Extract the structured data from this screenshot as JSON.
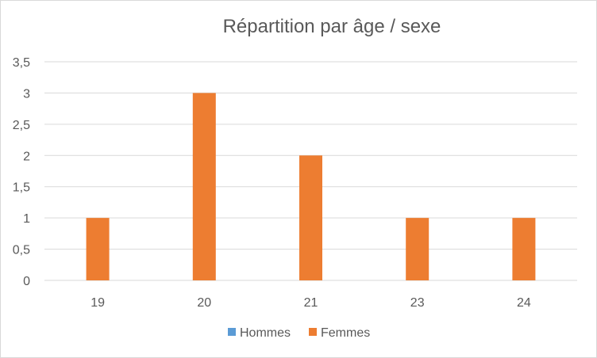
{
  "chart_data": {
    "type": "bar",
    "title": "Répartition par âge / sexe",
    "xlabel": "",
    "ylabel": "",
    "categories": [
      "19",
      "20",
      "21",
      "23",
      "24"
    ],
    "series": [
      {
        "name": "Hommes",
        "color": "#5b9bd5",
        "values": [
          0,
          0,
          0,
          0,
          0
        ]
      },
      {
        "name": "Femmes",
        "color": "#ed7d31",
        "values": [
          1,
          3,
          2,
          1,
          1
        ]
      }
    ],
    "ylim": [
      0,
      3.5
    ],
    "y_ticks": [
      "0",
      "0,5",
      "1",
      "1,5",
      "2",
      "2,5",
      "3",
      "3,5"
    ],
    "grid": true,
    "legend_position": "bottom"
  }
}
